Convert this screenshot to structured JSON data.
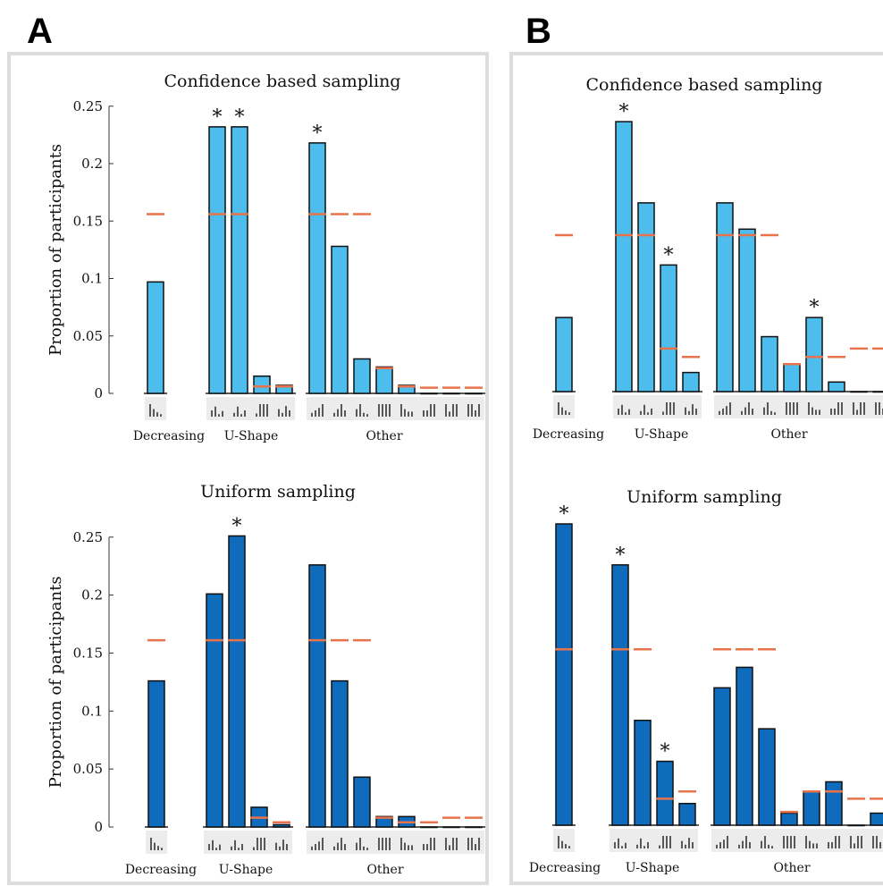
{
  "panels": [
    {
      "letter": "A"
    },
    {
      "letter": "B"
    }
  ],
  "chart_data": [
    {
      "panel": "A",
      "type": "bar",
      "title": "Confidence based sampling",
      "ylabel": "Proportion of participants",
      "ylim": [
        0,
        0.25
      ],
      "yticks": [
        0,
        0.05,
        0.1,
        0.15,
        0.2,
        0.25
      ],
      "yticklabels": [
        "0",
        "0.05",
        "0.1",
        "0.15",
        "0.2",
        "0.25"
      ],
      "bar_color": "#4dbdee",
      "reference_color": "#e8734a",
      "groups": [
        {
          "label": "Decreasing",
          "values": [
            0.097
          ],
          "reference": [
            0.156
          ],
          "significant": [
            false
          ]
        },
        {
          "label": "U-Shape",
          "values": [
            0.232,
            0.232,
            0.015,
            0.007
          ],
          "reference": [
            0.156,
            0.156,
            0.006,
            0.006
          ],
          "significant": [
            true,
            true,
            false,
            false
          ]
        },
        {
          "label": "Other",
          "values": [
            0.218,
            0.128,
            0.03,
            0.023,
            0.007,
            0,
            0,
            0
          ],
          "reference": [
            0.156,
            0.156,
            0.156,
            0.022,
            0.006,
            0.005,
            0.005,
            0.005
          ],
          "significant": [
            true,
            false,
            false,
            false,
            false,
            false,
            false,
            false
          ]
        }
      ]
    },
    {
      "panel": "A",
      "type": "bar",
      "title": "Uniform sampling",
      "ylabel": "Proportion of participants",
      "ylim": [
        0,
        0.25
      ],
      "yticks": [
        0,
        0.05,
        0.1,
        0.15,
        0.2,
        0.25
      ],
      "yticklabels": [
        "0",
        "0.05",
        "0.1",
        "0.15",
        "0.2",
        "0.25"
      ],
      "bar_color": "#0f6cbd",
      "reference_color": "#e8734a",
      "groups": [
        {
          "label": "Decreasing",
          "values": [
            0.126
          ],
          "reference": [
            0.161
          ],
          "significant": [
            false
          ]
        },
        {
          "label": "U-Shape",
          "values": [
            0.201,
            0.251,
            0.017,
            0.002
          ],
          "reference": [
            0.161,
            0.161,
            0.008,
            0.004
          ],
          "significant": [
            false,
            true,
            false,
            false
          ]
        },
        {
          "label": "Other",
          "values": [
            0.226,
            0.126,
            0.043,
            0.009,
            0.009,
            0,
            0,
            0
          ],
          "reference": [
            0.161,
            0.161,
            0.161,
            0.008,
            0.004,
            0.004,
            0.008,
            0.008
          ],
          "significant": [
            false,
            false,
            false,
            false,
            false,
            false,
            false,
            false
          ]
        }
      ]
    },
    {
      "panel": "B",
      "type": "bar",
      "title": "Confidence based sampling",
      "ylim": [
        0,
        0.25
      ],
      "bar_color": "#4dbdee",
      "reference_color": "#e8734a",
      "groups": [
        {
          "label": "Decreasing",
          "values": [
            0.062
          ],
          "reference": [
            0.131
          ],
          "significant": [
            false
          ]
        },
        {
          "label": "U-Shape",
          "values": [
            0.226,
            0.158,
            0.106,
            0.016
          ],
          "reference": [
            0.131,
            0.131,
            0.036,
            0.029
          ],
          "significant": [
            true,
            false,
            true,
            false
          ]
        },
        {
          "label": "Other",
          "values": [
            0.158,
            0.136,
            0.046,
            0.023,
            0.062,
            0.008,
            0,
            0
          ],
          "reference": [
            0.131,
            0.131,
            0.131,
            0.023,
            0.029,
            0.029,
            0.036,
            0.036
          ],
          "significant": [
            false,
            false,
            false,
            false,
            true,
            false,
            false,
            false
          ]
        }
      ]
    },
    {
      "panel": "B",
      "type": "bar",
      "title": "Uniform sampling",
      "ylim": [
        0,
        0.25
      ],
      "bar_color": "#0f6cbd",
      "reference_color": "#e8734a",
      "groups": [
        {
          "label": "Decreasing",
          "values": [
            0.25
          ],
          "reference": [
            0.146
          ],
          "significant": [
            true
          ]
        },
        {
          "label": "U-Shape",
          "values": [
            0.216,
            0.087,
            0.053,
            0.018
          ],
          "reference": [
            0.146,
            0.146,
            0.022,
            0.028
          ],
          "significant": [
            true,
            false,
            true,
            false
          ]
        },
        {
          "label": "Other",
          "values": [
            0.114,
            0.131,
            0.08,
            0.01,
            0.028,
            0.036,
            0,
            0.01
          ],
          "reference": [
            0.146,
            0.146,
            0.146,
            0.011,
            0.028,
            0.028,
            0.022,
            0.022
          ],
          "significant": [
            false,
            false,
            false,
            false,
            false,
            false,
            false,
            false
          ]
        }
      ]
    }
  ]
}
